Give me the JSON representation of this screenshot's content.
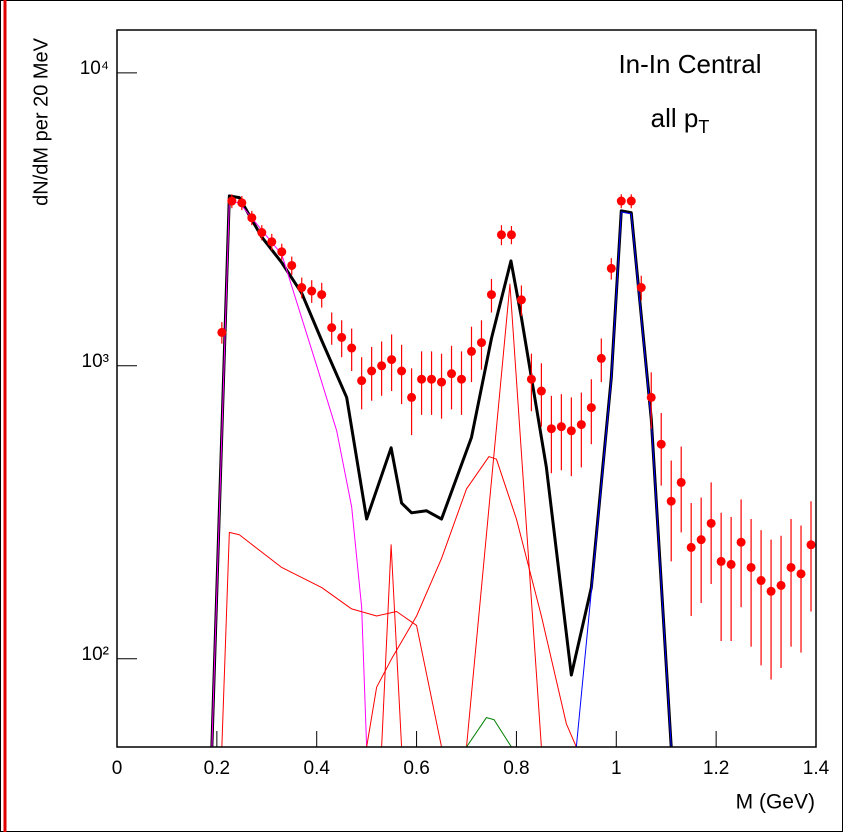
{
  "chart_data": {
    "type": "line",
    "annotations": [
      "In-In Central",
      {
        "text": "all p",
        "subscript": "T"
      }
    ],
    "x_label": "M (GeV)",
    "y_label": "dN/dM per 20 MeV",
    "xlim": [
      0,
      1.4
    ],
    "xticks": [
      0,
      0.2,
      0.4,
      0.6,
      0.8,
      1,
      1.2,
      1.4
    ],
    "ylim": [
      50,
      14000
    ],
    "ylog": true,
    "yticks": [
      {
        "value": 100,
        "label": "10²"
      },
      {
        "value": 1000,
        "label": "10³"
      },
      {
        "value": 10000,
        "label": "10⁴"
      }
    ],
    "series": [
      {
        "type": "errorbar",
        "color": "#ff0000",
        "x": [
          0.21,
          0.23,
          0.25,
          0.27,
          0.29,
          0.31,
          0.33,
          0.35,
          0.37,
          0.39,
          0.41,
          0.43,
          0.45,
          0.47,
          0.49,
          0.51,
          0.53,
          0.55,
          0.57,
          0.59,
          0.61,
          0.63,
          0.65,
          0.67,
          0.69,
          0.71,
          0.73,
          0.75,
          0.77,
          0.79,
          0.81,
          0.83,
          0.85,
          0.87,
          0.89,
          0.91,
          0.93,
          0.95,
          0.97,
          0.99,
          1.01,
          1.03,
          1.05,
          1.07,
          1.09,
          1.11,
          1.13,
          1.15,
          1.17,
          1.19,
          1.21,
          1.23,
          1.25,
          1.27,
          1.29,
          1.31,
          1.33,
          1.35,
          1.37,
          1.39
        ],
        "values": [
          1300,
          3650,
          3600,
          3200,
          2850,
          2650,
          2450,
          2200,
          1850,
          1800,
          1750,
          1350,
          1250,
          1150,
          890,
          960,
          1000,
          1050,
          960,
          780,
          900,
          900,
          880,
          940,
          900,
          1120,
          1200,
          1750,
          2800,
          2800,
          1680,
          900,
          820,
          610,
          620,
          600,
          630,
          720,
          1060,
          2150,
          3650,
          3650,
          1850,
          780,
          540,
          345,
          400,
          240,
          255,
          290,
          215,
          210,
          250,
          205,
          185,
          170,
          178,
          205,
          195,
          245
        ],
        "errors": [
          110,
          200,
          200,
          180,
          170,
          170,
          160,
          160,
          150,
          160,
          170,
          170,
          180,
          190,
          180,
          200,
          210,
          230,
          220,
          200,
          220,
          220,
          220,
          230,
          220,
          240,
          230,
          230,
          220,
          200,
          200,
          200,
          200,
          180,
          180,
          180,
          180,
          180,
          180,
          180,
          200,
          200,
          180,
          170,
          150,
          130,
          130,
          100,
          100,
          110,
          100,
          95,
          100,
          95,
          90,
          85,
          85,
          95,
          90,
          100
        ]
      },
      {
        "type": "line",
        "color": "#000000",
        "line_width": 3,
        "x": [
          0.19,
          0.225,
          0.245,
          0.29,
          0.33,
          0.37,
          0.41,
          0.46,
          0.5,
          0.549,
          0.57,
          0.59,
          0.62,
          0.65,
          0.71,
          0.75,
          0.789,
          0.81,
          0.86,
          0.91,
          0.95,
          0.99,
          1.01,
          1.03,
          1.07,
          1.11
        ],
        "values": [
          50,
          3800,
          3750,
          2750,
          2250,
          1770,
          1220,
          780,
          300,
          525,
          340,
          315,
          320,
          300,
          570,
          1240,
          2280,
          1460,
          450,
          88,
          175,
          910,
          3380,
          3330,
          660,
          50
        ]
      },
      {
        "type": "line",
        "color": "#ff00ff",
        "line_width": 1,
        "x": [
          0.19,
          0.225,
          0.245,
          0.33,
          0.4,
          0.44,
          0.47,
          0.49,
          0.5
        ],
        "values": [
          50,
          3650,
          3600,
          2400,
          1000,
          600,
          330,
          150,
          50
        ]
      },
      {
        "type": "line",
        "color": "#ff0000",
        "line_width": 1,
        "x": [
          0.21,
          0.225,
          0.245,
          0.33,
          0.41,
          0.47,
          0.52,
          0.56,
          0.6,
          0.65
        ],
        "values": [
          50,
          270,
          265,
          205,
          175,
          148,
          140,
          145,
          130,
          50
        ]
      },
      {
        "type": "line",
        "color": "#ff0000",
        "line_width": 1,
        "x": [
          0.53,
          0.549,
          0.57
        ],
        "values": [
          50,
          245,
          50
        ]
      },
      {
        "type": "line",
        "color": "#ff0000",
        "line_width": 1,
        "x": [
          0.5,
          0.52,
          0.55,
          0.6,
          0.65,
          0.7,
          0.745,
          0.76,
          0.8,
          0.85,
          0.9,
          0.92
        ],
        "values": [
          50,
          80,
          100,
          140,
          220,
          380,
          490,
          480,
          300,
          140,
          60,
          50
        ]
      },
      {
        "type": "line",
        "color": "#ff0000",
        "line_width": 1,
        "x": [
          0.7,
          0.787,
          0.85
        ],
        "values": [
          50,
          1900,
          50
        ]
      },
      {
        "type": "line",
        "color": "#0000ff",
        "line_width": 1,
        "x": [
          0.92,
          0.95,
          0.99,
          1.01,
          1.03,
          1.07,
          1.11
        ],
        "values": [
          50,
          170,
          900,
          3350,
          3300,
          650,
          50
        ]
      },
      {
        "type": "line",
        "color": "#008000",
        "line_width": 1,
        "x": [
          0.7,
          0.74,
          0.755,
          0.79
        ],
        "values": [
          50,
          63,
          62,
          50
        ]
      }
    ]
  }
}
